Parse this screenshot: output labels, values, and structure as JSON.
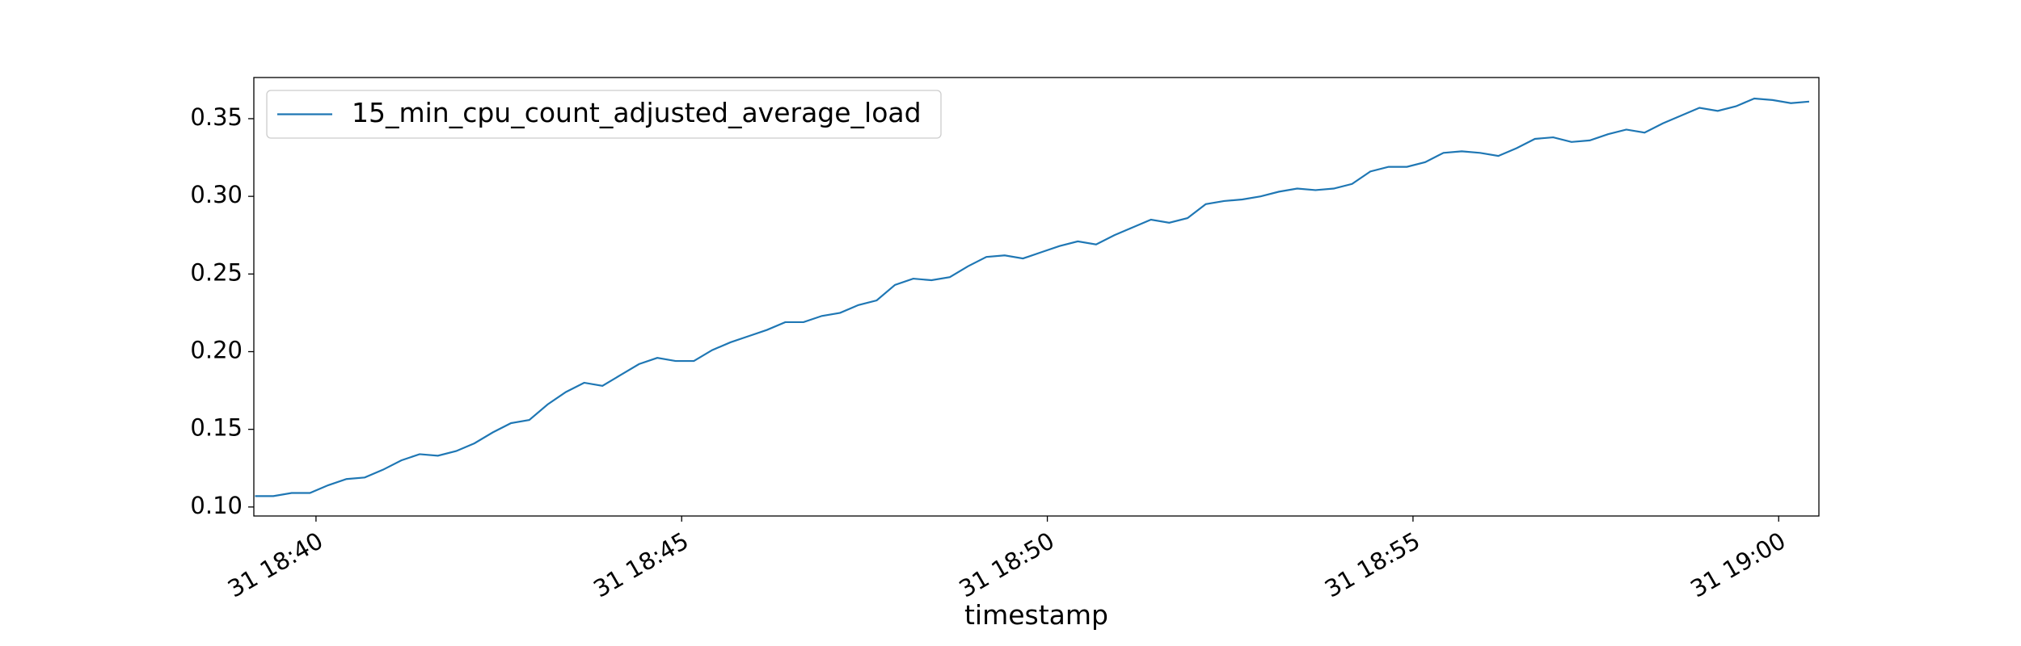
{
  "chart_data": {
    "type": "line",
    "xlabel": "timestamp",
    "x": [
      "31 18:39:10",
      "31 18:39:25",
      "31 18:39:40",
      "31 18:39:55",
      "31 18:40:10",
      "31 18:40:25",
      "31 18:40:40",
      "31 18:40:55",
      "31 18:41:10",
      "31 18:41:25",
      "31 18:41:40",
      "31 18:41:55",
      "31 18:42:10",
      "31 18:42:25",
      "31 18:42:40",
      "31 18:42:55",
      "31 18:43:10",
      "31 18:43:25",
      "31 18:43:40",
      "31 18:43:55",
      "31 18:44:10",
      "31 18:44:25",
      "31 18:44:40",
      "31 18:44:55",
      "31 18:45:10",
      "31 18:45:25",
      "31 18:45:40",
      "31 18:45:55",
      "31 18:46:10",
      "31 18:46:25",
      "31 18:46:40",
      "31 18:46:55",
      "31 18:47:10",
      "31 18:47:25",
      "31 18:47:40",
      "31 18:47:55",
      "31 18:48:10",
      "31 18:48:25",
      "31 18:48:40",
      "31 18:48:55",
      "31 18:49:10",
      "31 18:49:25",
      "31 18:49:40",
      "31 18:49:55",
      "31 18:50:10",
      "31 18:50:25",
      "31 18:50:40",
      "31 18:50:55",
      "31 18:51:10",
      "31 18:51:25",
      "31 18:51:40",
      "31 18:51:55",
      "31 18:52:10",
      "31 18:52:25",
      "31 18:52:40",
      "31 18:52:55",
      "31 18:53:10",
      "31 18:53:25",
      "31 18:53:40",
      "31 18:53:55",
      "31 18:54:10",
      "31 18:54:25",
      "31 18:54:40",
      "31 18:54:55",
      "31 18:55:10",
      "31 18:55:25",
      "31 18:55:40",
      "31 18:55:55",
      "31 18:56:10",
      "31 18:56:25",
      "31 18:56:40",
      "31 18:56:55",
      "31 18:57:10",
      "31 18:57:25",
      "31 18:57:40",
      "31 18:57:55",
      "31 18:58:10",
      "31 18:58:25",
      "31 18:58:40",
      "31 18:58:55",
      "31 18:59:10",
      "31 18:59:25",
      "31 18:59:40",
      "31 18:59:55",
      "31 19:00:10",
      "31 19:00:25"
    ],
    "series": [
      {
        "name": "15_min_cpu_count_adjusted_average_load",
        "color": "#1f77b4",
        "values": [
          0.107,
          0.107,
          0.109,
          0.109,
          0.114,
          0.118,
          0.119,
          0.124,
          0.13,
          0.134,
          0.133,
          0.136,
          0.141,
          0.148,
          0.154,
          0.156,
          0.166,
          0.174,
          0.18,
          0.178,
          0.185,
          0.192,
          0.196,
          0.194,
          0.194,
          0.201,
          0.206,
          0.21,
          0.214,
          0.219,
          0.219,
          0.223,
          0.225,
          0.23,
          0.233,
          0.243,
          0.247,
          0.246,
          0.248,
          0.255,
          0.261,
          0.262,
          0.26,
          0.264,
          0.268,
          0.271,
          0.269,
          0.275,
          0.28,
          0.285,
          0.283,
          0.286,
          0.295,
          0.297,
          0.298,
          0.3,
          0.303,
          0.305,
          0.304,
          0.305,
          0.308,
          0.316,
          0.319,
          0.319,
          0.322,
          0.328,
          0.329,
          0.328,
          0.326,
          0.331,
          0.337,
          0.338,
          0.335,
          0.336,
          0.34,
          0.343,
          0.341,
          0.347,
          0.352,
          0.357,
          0.355,
          0.358,
          0.363,
          0.362,
          0.36,
          0.361
        ]
      }
    ],
    "xlim": [
      "31 18:39:09",
      "31 19:00:33"
    ],
    "xticks": [
      "31 18:40",
      "31 18:45",
      "31 18:50",
      "31 18:55",
      "31 19:00"
    ],
    "ylim": [
      0.0942,
      0.3765
    ],
    "yticks": [
      {
        "value": 0.1,
        "label": "0.10"
      },
      {
        "value": 0.15,
        "label": "0.15"
      },
      {
        "value": 0.2,
        "label": "0.20"
      },
      {
        "value": 0.25,
        "label": "0.25"
      },
      {
        "value": 0.3,
        "label": "0.30"
      },
      {
        "value": 0.35,
        "label": "0.35"
      }
    ],
    "legend": "upper left",
    "grid": false
  }
}
